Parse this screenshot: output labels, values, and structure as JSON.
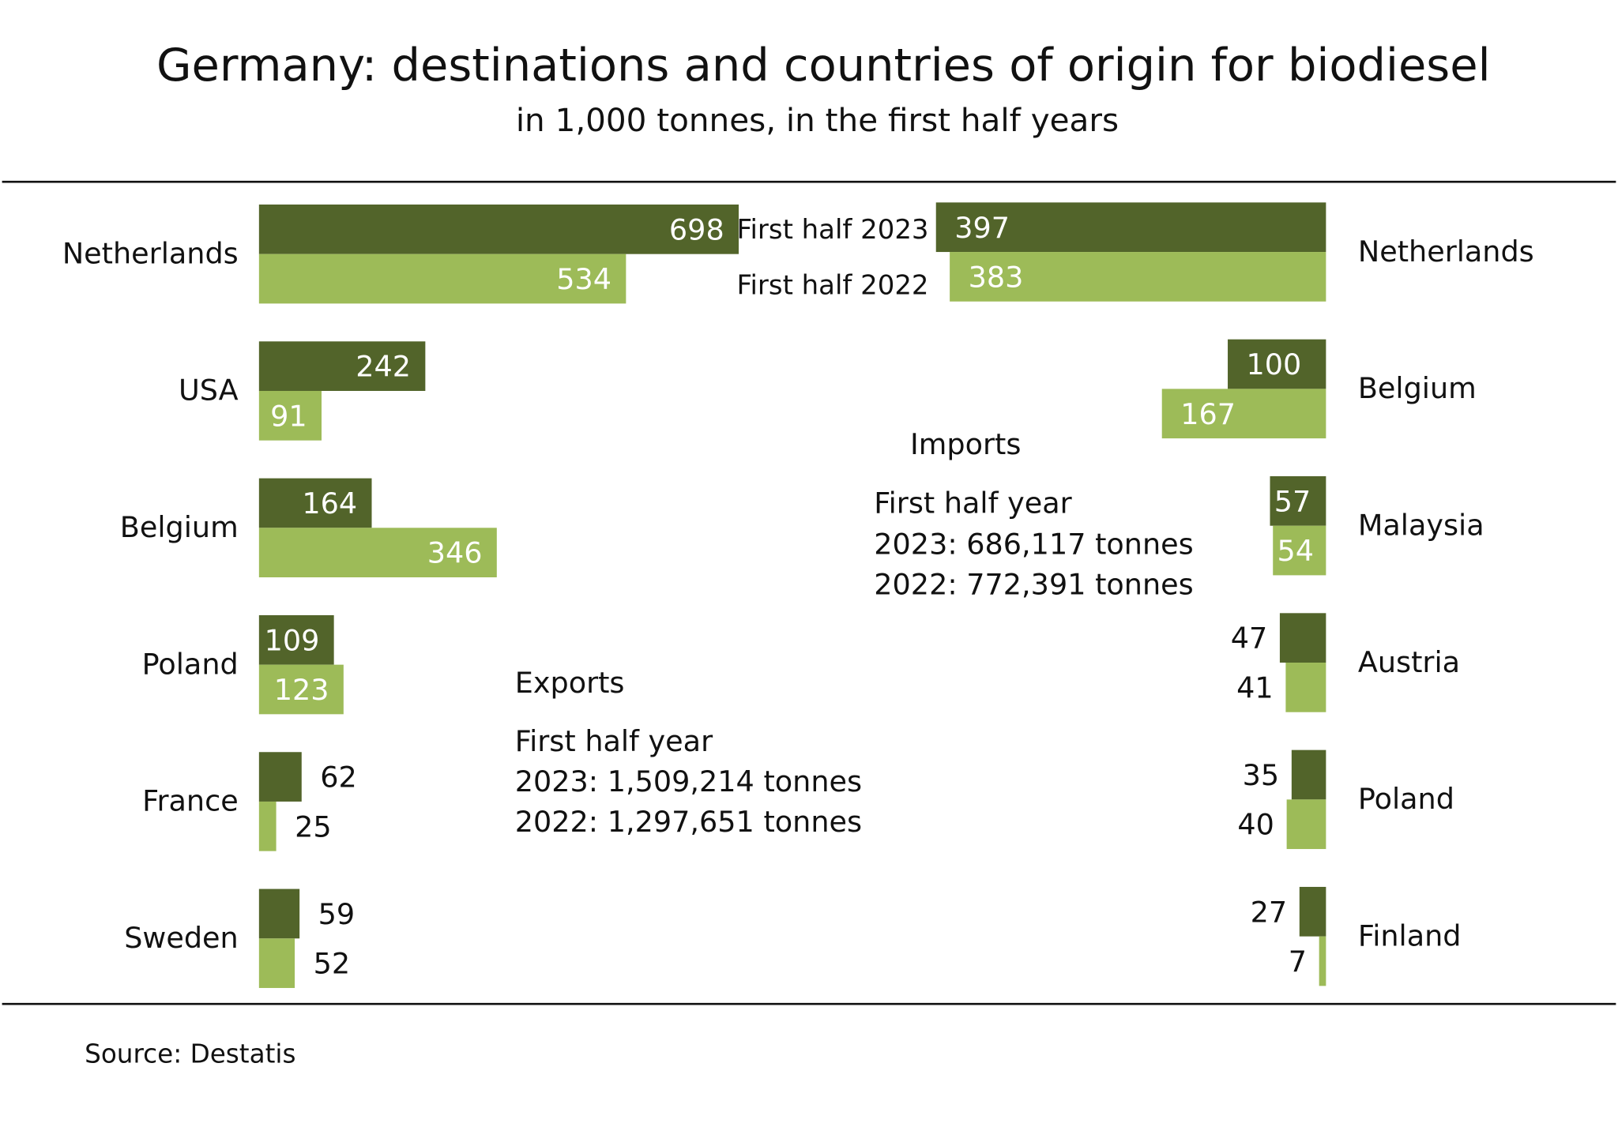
{
  "colors": {
    "2023": "#52642a",
    "2022": "#9dbb58",
    "label_inside": "#ffffff",
    "label_outside": "#111111"
  },
  "chart_data": {
    "type": "bar",
    "orientation": "horizontal",
    "title": "Germany: destinations and countries of origin for biodiesel",
    "subtitle": "in 1,000 tonnes, in the first half years",
    "source": "Source:  Destatis",
    "legend": {
      "series_2023": "First half 2023",
      "series_2022": "First half 2022",
      "placement": "top-center"
    },
    "exports": {
      "heading": "Exports",
      "lines": [
        "First half year",
        "2023: 1,509,214 tonnes",
        "2022: 1,297,651 tonnes"
      ],
      "categories": [
        "Netherlands",
        "USA",
        "Belgium",
        "Poland",
        "France",
        "Sweden"
      ],
      "series": [
        {
          "name": "First half 2023",
          "values": [
            698,
            242,
            164,
            109,
            62,
            59
          ]
        },
        {
          "name": "First half 2022",
          "values": [
            534,
            91,
            346,
            123,
            25,
            52
          ]
        }
      ]
    },
    "imports": {
      "heading": "Imports",
      "lines": [
        "First half year",
        "2023: 686,117 tonnes",
        "2022: 772,391 tonnes"
      ],
      "categories": [
        "Netherlands",
        "Belgium",
        "Malaysia",
        "Austria",
        "Poland",
        "Finland"
      ],
      "series": [
        {
          "name": "First half 2023",
          "values": [
            397,
            100,
            57,
            47,
            35,
            27
          ]
        },
        {
          "name": "First half 2022",
          "values": [
            383,
            167,
            54,
            41,
            40,
            7
          ]
        }
      ]
    }
  }
}
